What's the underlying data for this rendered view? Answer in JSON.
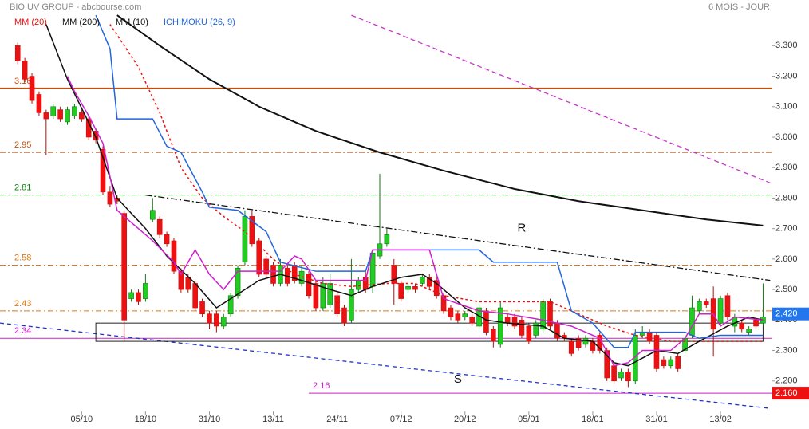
{
  "chart_data": {
    "type": "candlestick",
    "title": "BIO UV GROUP - abcbourse.com",
    "subtitle": "6 MOIS - JOUR",
    "xlim": [
      -2.5,
      106.3
    ],
    "ylim": [
      2.1,
      3.45
    ],
    "xticks": [
      {
        "value": 9,
        "label": "05/10"
      },
      {
        "value": 18,
        "label": "18/10"
      },
      {
        "value": 27,
        "label": "31/10"
      },
      {
        "value": 36,
        "label": "13/11"
      },
      {
        "value": 45,
        "label": "24/11"
      },
      {
        "value": 54,
        "label": "07/12"
      },
      {
        "value": 63,
        "label": "20/12"
      },
      {
        "value": 72,
        "label": "05/01"
      },
      {
        "value": 81,
        "label": "18/01"
      },
      {
        "value": 90,
        "label": "31/01"
      },
      {
        "value": 99,
        "label": "13/02"
      }
    ],
    "yticks": [
      {
        "value": 3.3,
        "label": "3.300"
      },
      {
        "value": 3.2,
        "label": "3.200"
      },
      {
        "value": 3.1,
        "label": "3.100"
      },
      {
        "value": 3.0,
        "label": "3.000"
      },
      {
        "value": 2.9,
        "label": "2.900"
      },
      {
        "value": 2.8,
        "label": "2.800"
      },
      {
        "value": 2.7,
        "label": "2.700"
      },
      {
        "value": 2.6,
        "label": "2.600"
      },
      {
        "value": 2.5,
        "label": "2.500"
      },
      {
        "value": 2.4,
        "label": "2.400"
      },
      {
        "value": 2.3,
        "label": "2.300"
      },
      {
        "value": 2.2,
        "label": "2.200"
      }
    ],
    "up_color": "#22cc22",
    "down_color": "#ee1111",
    "open": [
      3.3,
      3.25,
      3.2,
      3.14,
      3.08,
      3.07,
      3.09,
      3.05,
      3.07,
      3.08,
      3.06,
      3.02,
      2.96,
      2.82,
      2.8,
      2.75,
      2.47,
      2.49,
      2.47,
      2.73,
      2.73,
      2.68,
      2.66,
      2.56,
      2.54,
      2.52,
      2.46,
      2.42,
      2.42,
      2.38,
      2.42,
      2.48,
      2.59,
      2.74,
      2.66,
      2.6,
      2.58,
      2.52,
      2.57,
      2.58,
      2.52,
      2.55,
      2.52,
      2.44,
      2.45,
      2.48,
      2.44,
      2.4,
      2.5,
      2.54,
      2.51,
      2.61,
      2.65,
      2.58,
      2.52,
      2.5,
      2.51,
      2.52,
      2.54,
      2.53,
      2.48,
      2.44,
      2.42,
      2.41,
      2.41,
      2.38,
      2.43,
      2.37,
      2.32,
      2.41,
      2.41,
      2.4,
      2.38,
      2.35,
      2.37,
      2.46,
      2.39,
      2.35,
      2.33,
      2.34,
      2.32,
      2.33,
      2.35,
      2.3,
      2.25,
      2.21,
      2.23,
      2.2,
      2.35,
      2.36,
      2.35,
      2.27,
      2.25,
      2.28,
      2.3,
      2.35,
      2.43,
      2.46,
      2.47,
      2.39,
      2.48,
      2.38,
      2.39,
      2.36,
      2.4,
      2.39
    ],
    "high": [
      3.31,
      3.26,
      3.21,
      3.15,
      3.09,
      3.11,
      3.1,
      3.1,
      3.11,
      3.09,
      3.07,
      3.03,
      2.97,
      2.84,
      2.81,
      2.76,
      2.5,
      2.5,
      2.55,
      2.8,
      2.74,
      2.69,
      2.67,
      2.57,
      2.55,
      2.53,
      2.47,
      2.43,
      2.43,
      2.42,
      2.49,
      2.58,
      2.76,
      2.76,
      2.67,
      2.61,
      2.59,
      2.6,
      2.58,
      2.59,
      2.58,
      2.56,
      2.53,
      2.54,
      2.55,
      2.49,
      2.45,
      2.6,
      2.54,
      2.56,
      2.63,
      2.88,
      2.7,
      2.6,
      2.53,
      2.52,
      2.52,
      2.55,
      2.55,
      2.54,
      2.49,
      2.45,
      2.43,
      2.43,
      2.42,
      2.46,
      2.44,
      2.38,
      2.46,
      2.42,
      2.42,
      2.41,
      2.39,
      2.4,
      2.47,
      2.47,
      2.4,
      2.36,
      2.34,
      2.35,
      2.35,
      2.34,
      2.36,
      2.31,
      2.26,
      2.24,
      2.24,
      2.37,
      2.38,
      2.37,
      2.36,
      2.28,
      2.28,
      2.29,
      2.35,
      2.48,
      2.47,
      2.47,
      2.51,
      2.48,
      2.49,
      2.42,
      2.4,
      2.38,
      2.41,
      2.52
    ],
    "low": [
      3.24,
      3.18,
      3.11,
      3.07,
      2.94,
      3.06,
      3.05,
      3.04,
      3.06,
      3.05,
      2.99,
      2.98,
      2.81,
      2.77,
      2.78,
      2.33,
      2.46,
      2.45,
      2.46,
      2.72,
      2.67,
      2.64,
      2.55,
      2.49,
      2.49,
      2.43,
      2.41,
      2.37,
      2.36,
      2.37,
      2.41,
      2.47,
      2.58,
      2.64,
      2.54,
      2.54,
      2.51,
      2.51,
      2.51,
      2.52,
      2.51,
      2.47,
      2.43,
      2.43,
      2.44,
      2.41,
      2.38,
      2.39,
      2.49,
      2.49,
      2.49,
      2.6,
      2.64,
      2.45,
      2.46,
      2.49,
      2.49,
      2.51,
      2.5,
      2.47,
      2.42,
      2.4,
      2.39,
      2.4,
      2.38,
      2.37,
      2.35,
      2.31,
      2.31,
      2.38,
      2.37,
      2.34,
      2.32,
      2.34,
      2.36,
      2.37,
      2.33,
      2.33,
      2.28,
      2.3,
      2.31,
      2.29,
      2.29,
      2.2,
      2.19,
      2.2,
      2.18,
      2.19,
      2.34,
      2.32,
      2.23,
      2.24,
      2.24,
      2.23,
      2.29,
      2.34,
      2.42,
      2.44,
      2.28,
      2.38,
      2.4,
      2.36,
      2.36,
      2.35,
      2.37,
      2.38
    ],
    "close": [
      3.25,
      3.19,
      3.12,
      3.08,
      3.06,
      3.1,
      3.06,
      3.09,
      3.1,
      3.06,
      3.0,
      2.99,
      2.82,
      2.78,
      2.79,
      2.4,
      2.49,
      2.46,
      2.52,
      2.76,
      2.68,
      2.65,
      2.56,
      2.5,
      2.5,
      2.44,
      2.42,
      2.39,
      2.38,
      2.41,
      2.48,
      2.57,
      2.74,
      2.65,
      2.55,
      2.55,
      2.52,
      2.58,
      2.52,
      2.53,
      2.56,
      2.48,
      2.44,
      2.52,
      2.52,
      2.42,
      2.39,
      2.5,
      2.53,
      2.5,
      2.62,
      2.65,
      2.68,
      2.52,
      2.47,
      2.51,
      2.5,
      2.54,
      2.51,
      2.48,
      2.43,
      2.41,
      2.4,
      2.42,
      2.39,
      2.44,
      2.36,
      2.33,
      2.44,
      2.39,
      2.38,
      2.35,
      2.33,
      2.39,
      2.46,
      2.38,
      2.34,
      2.34,
      2.29,
      2.31,
      2.34,
      2.3,
      2.3,
      2.21,
      2.2,
      2.23,
      2.2,
      2.35,
      2.36,
      2.33,
      2.24,
      2.25,
      2.27,
      2.24,
      2.34,
      2.44,
      2.46,
      2.45,
      2.37,
      2.47,
      2.41,
      2.41,
      2.37,
      2.37,
      2.38,
      2.41
    ],
    "series": [
      {
        "name": "MM (20)",
        "color": "#ee1111",
        "dash": true,
        "width": 1.5,
        "x": [
          13,
          17,
          20,
          23,
          26,
          29,
          32,
          36,
          39,
          43,
          47,
          52,
          56,
          60,
          65,
          69,
          75,
          78,
          83,
          87,
          92,
          96,
          101,
          105
        ],
        "values": [
          3.37,
          3.23,
          3.08,
          2.9,
          2.8,
          2.74,
          2.69,
          2.6,
          2.55,
          2.52,
          2.51,
          2.52,
          2.52,
          2.48,
          2.46,
          2.46,
          2.46,
          2.43,
          2.38,
          2.35,
          2.33,
          2.33,
          2.33,
          2.33
        ]
      },
      {
        "name": "MM (200)",
        "color": "#111111",
        "dash": false,
        "width": 2,
        "x": [
          14,
          20,
          27,
          34,
          42,
          51,
          60,
          70,
          79,
          88,
          97,
          105
        ],
        "values": [
          3.4,
          3.3,
          3.19,
          3.1,
          3.02,
          2.95,
          2.89,
          2.83,
          2.79,
          2.76,
          2.73,
          2.71
        ]
      },
      {
        "name": "MM (10)",
        "color": "#111111",
        "dash": false,
        "width": 1.5,
        "x": [
          4,
          7,
          11,
          14,
          18,
          21,
          25,
          28,
          30,
          34,
          37,
          40,
          44,
          47,
          50,
          54,
          57,
          59,
          63,
          66,
          69,
          74,
          77,
          81,
          84,
          86,
          90,
          93,
          96,
          100,
          103,
          105
        ],
        "values": [
          3.37,
          3.19,
          3.0,
          2.8,
          2.7,
          2.61,
          2.52,
          2.44,
          2.47,
          2.53,
          2.55,
          2.53,
          2.5,
          2.48,
          2.51,
          2.54,
          2.55,
          2.52,
          2.44,
          2.4,
          2.39,
          2.38,
          2.34,
          2.33,
          2.26,
          2.25,
          2.3,
          2.29,
          2.33,
          2.38,
          2.41,
          2.4
        ]
      },
      {
        "name": "ICHIMOKU (26, 9)",
        "color": "#2266dd",
        "dash": false,
        "width": 1.5,
        "x": [
          11,
          13,
          14,
          19,
          21,
          23,
          26,
          27,
          31,
          35,
          37,
          42,
          49,
          50,
          59,
          65,
          67,
          76,
          78,
          81,
          84,
          86,
          87,
          94,
          96,
          99,
          105
        ],
        "values": [
          3.4,
          3.29,
          3.06,
          3.06,
          2.97,
          2.95,
          2.82,
          2.77,
          2.76,
          2.69,
          2.59,
          2.56,
          2.56,
          2.63,
          2.63,
          2.63,
          2.59,
          2.59,
          2.43,
          2.39,
          2.31,
          2.31,
          2.36,
          2.36,
          2.34,
          2.35,
          2.35
        ]
      },
      {
        "color": "#cc22cc",
        "dash": false,
        "width": 1.5,
        "x": [
          7,
          8,
          10,
          12,
          14,
          16,
          19,
          22,
          23,
          25,
          27,
          29,
          31,
          37,
          39,
          40,
          42,
          49,
          50,
          58,
          60,
          65,
          69,
          74,
          78,
          82,
          84,
          86,
          88,
          92,
          94,
          96,
          98,
          99,
          101,
          105
        ],
        "values": [
          3.2,
          3.15,
          3.07,
          2.98,
          2.76,
          2.72,
          2.66,
          2.59,
          2.55,
          2.63,
          2.55,
          2.5,
          2.56,
          2.56,
          2.61,
          2.6,
          2.53,
          2.53,
          2.63,
          2.63,
          2.47,
          2.43,
          2.42,
          2.4,
          2.38,
          2.34,
          2.25,
          2.26,
          2.3,
          2.3,
          2.34,
          2.42,
          2.42,
          2.38,
          2.41,
          2.4
        ]
      }
    ],
    "levels": [
      {
        "value": 3.16,
        "color": "#c05010",
        "dash": false
      },
      {
        "value": 2.95,
        "color": "#c05010",
        "dash": true
      },
      {
        "value": 2.81,
        "color": "#118811",
        "dash": true
      },
      {
        "value": 2.58,
        "color": "#dd7711",
        "dash": true
      },
      {
        "value": 2.43,
        "color": "#dd7711",
        "dash": true
      },
      {
        "value": 2.34,
        "color": "#cc22cc",
        "dash": false
      },
      {
        "value": 2.16,
        "color": "#cc22cc",
        "dash": false,
        "from": 41
      }
    ],
    "trendlines": [
      {
        "x": [
          47,
          106
        ],
        "values": [
          3.4,
          2.85
        ],
        "color": "#cc33cc",
        "dash": "6,4"
      },
      {
        "x": [
          18,
          106
        ],
        "values": [
          2.81,
          2.53
        ],
        "color": "#111111",
        "dash": "8,3,2,3"
      },
      {
        "x": [
          -2.5,
          106
        ],
        "values": [
          2.39,
          2.11
        ],
        "color": "#2233cc",
        "dash": "5,4"
      }
    ],
    "box": {
      "x": [
        11,
        105
      ],
      "values": [
        2.39,
        2.33
      ]
    },
    "annotations": [
      {
        "text": "R",
        "x": 71,
        "y": 2.7
      },
      {
        "text": "S",
        "x": 62,
        "y": 2.205
      }
    ],
    "price_tags": [
      {
        "value": 2.42,
        "label": "2.420",
        "color": "#2277ee"
      },
      {
        "value": 2.16,
        "label": "2.160",
        "color": "#ee1111"
      }
    ]
  }
}
